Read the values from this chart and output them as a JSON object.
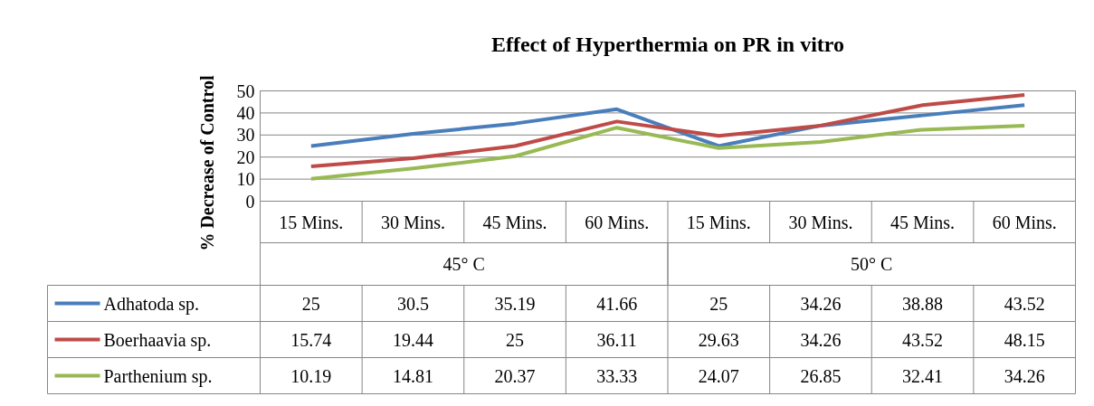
{
  "chart_data": {
    "type": "line",
    "title": "Effect of Hyperthermia on PR in vitro",
    "ylabel": "% Decrease of Control",
    "categories": [
      "15 Mins.",
      "30 Mins.",
      "45 Mins.",
      "60 Mins.",
      "15 Mins.",
      "30 Mins.",
      "45 Mins.",
      "60 Mins."
    ],
    "annotations": [
      "45° C",
      "50° C"
    ],
    "series": [
      {
        "name": "Adhatoda sp.",
        "color": "#4a7ebb",
        "values": [
          25,
          30.5,
          35.19,
          41.66,
          25,
          34.26,
          38.88,
          43.52
        ]
      },
      {
        "name": "Boerhaavia sp.",
        "color": "#be4b48",
        "values": [
          15.74,
          19.44,
          25,
          36.11,
          29.63,
          34.26,
          43.52,
          48.15
        ]
      },
      {
        "name": "Parthenium sp.",
        "color": "#98b954",
        "values": [
          10.19,
          14.81,
          20.37,
          33.33,
          24.07,
          26.85,
          32.41,
          34.26
        ]
      }
    ],
    "ylim": [
      0,
      50
    ],
    "yticks": [
      0,
      10,
      20,
      30,
      40,
      50
    ],
    "grid": "y",
    "data_labels": true,
    "legend": "bottom left",
    "line_style": "solid",
    "marker": "none"
  }
}
